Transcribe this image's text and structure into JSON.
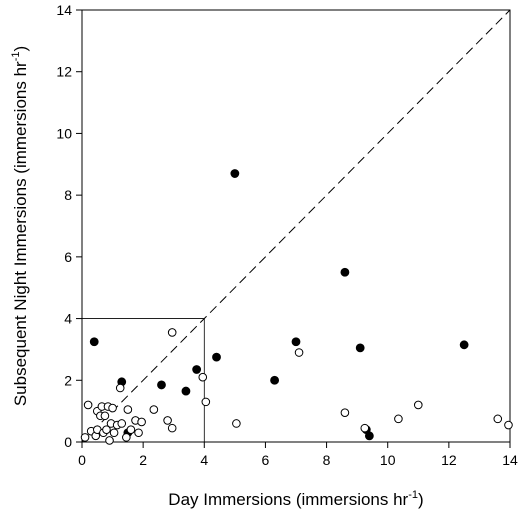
{
  "chart_data": {
    "type": "scatter",
    "title": "",
    "xlabel": "Day Immersions (immersions hr",
    "ylabel": "Subsequent Night Immersions (immersions hr",
    "label_exponent": "-1",
    "label_suffix": ")",
    "xlim": [
      0,
      14
    ],
    "ylim": [
      0,
      14
    ],
    "xticks": [
      0,
      2,
      4,
      6,
      8,
      10,
      12,
      14
    ],
    "yticks": [
      0,
      2,
      4,
      6,
      8,
      10,
      12,
      14
    ],
    "grid": false,
    "reference_line": {
      "style": "dashed",
      "x": [
        0,
        14
      ],
      "y": [
        0,
        14
      ]
    },
    "inset_box": {
      "x": [
        0,
        4
      ],
      "y": [
        0,
        4
      ]
    },
    "series": [
      {
        "marker": "filled-circle",
        "color": "#000000",
        "points": [
          [
            0.4,
            3.25
          ],
          [
            1.3,
            1.95
          ],
          [
            1.5,
            0.3
          ],
          [
            2.6,
            1.85
          ],
          [
            3.4,
            1.65
          ],
          [
            3.75,
            2.35
          ],
          [
            4.4,
            2.75
          ],
          [
            5.0,
            8.7
          ],
          [
            6.3,
            2.0
          ],
          [
            7.0,
            3.25
          ],
          [
            8.6,
            5.5
          ],
          [
            9.1,
            3.05
          ],
          [
            9.3,
            0.4
          ],
          [
            9.4,
            0.2
          ],
          [
            12.5,
            3.15
          ]
        ]
      },
      {
        "marker": "open-circle",
        "color": "#000000",
        "points": [
          [
            0.1,
            0.15
          ],
          [
            0.2,
            1.2
          ],
          [
            0.3,
            0.35
          ],
          [
            0.45,
            0.2
          ],
          [
            0.5,
            0.4
          ],
          [
            0.5,
            1.0
          ],
          [
            0.6,
            0.85
          ],
          [
            0.65,
            1.15
          ],
          [
            0.7,
            0.3
          ],
          [
            0.75,
            0.85
          ],
          [
            0.8,
            0.4
          ],
          [
            0.85,
            1.15
          ],
          [
            0.9,
            0.05
          ],
          [
            0.95,
            0.6
          ],
          [
            1.0,
            1.1
          ],
          [
            1.05,
            0.3
          ],
          [
            1.15,
            0.55
          ],
          [
            1.25,
            1.75
          ],
          [
            1.3,
            0.6
          ],
          [
            1.45,
            0.15
          ],
          [
            1.5,
            1.05
          ],
          [
            1.6,
            0.4
          ],
          [
            1.75,
            0.7
          ],
          [
            1.85,
            0.3
          ],
          [
            1.95,
            0.65
          ],
          [
            2.35,
            1.05
          ],
          [
            2.8,
            0.7
          ],
          [
            2.95,
            0.45
          ],
          [
            2.95,
            3.55
          ],
          [
            3.95,
            2.1
          ],
          [
            4.05,
            1.3
          ],
          [
            5.05,
            0.6
          ],
          [
            7.1,
            2.9
          ],
          [
            8.6,
            0.95
          ],
          [
            9.25,
            0.45
          ],
          [
            10.35,
            0.75
          ],
          [
            11.0,
            1.2
          ],
          [
            13.6,
            0.75
          ],
          [
            13.95,
            0.55
          ]
        ]
      }
    ]
  }
}
